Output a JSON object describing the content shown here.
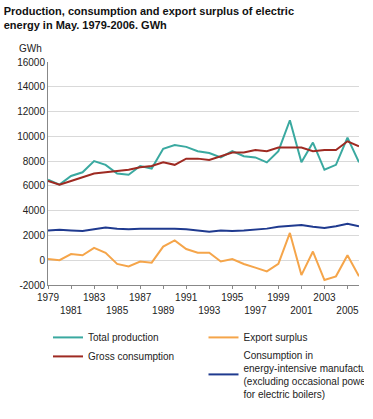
{
  "chart_data": {
    "type": "line",
    "title": "Production, consumption and export surplus of electric energy in May. 1979-2006. GWh",
    "ylabel": "GWh",
    "x": [
      1979,
      1980,
      1981,
      1982,
      1983,
      1984,
      1985,
      1986,
      1987,
      1988,
      1989,
      1990,
      1991,
      1992,
      1993,
      1994,
      1995,
      1996,
      1997,
      1998,
      1999,
      2000,
      2001,
      2002,
      2003,
      2004,
      2005,
      2006
    ],
    "series": [
      {
        "name": "Total production",
        "color": "#3aa9a0",
        "values": [
          6500,
          6100,
          6800,
          7100,
          8000,
          7700,
          7000,
          6900,
          7600,
          7400,
          9000,
          9300,
          9150,
          8800,
          8650,
          8300,
          8800,
          8400,
          8300,
          7900,
          8800,
          11300,
          7900,
          9500,
          7300,
          7700,
          9900,
          7900
        ]
      },
      {
        "name": "Export surplus",
        "color": "#f5a54a",
        "values": [
          100,
          0,
          500,
          400,
          1000,
          600,
          -300,
          -500,
          -100,
          -200,
          1100,
          1600,
          900,
          600,
          600,
          -100,
          100,
          -300,
          -600,
          -900,
          -300,
          2200,
          -1200,
          700,
          -1600,
          -1300,
          400,
          -1300
        ]
      },
      {
        "name": "Gross consumption",
        "color": "#9e2a22",
        "values": [
          6400,
          6100,
          6400,
          6700,
          7000,
          7100,
          7200,
          7300,
          7500,
          7600,
          7900,
          7700,
          8200,
          8200,
          8100,
          8400,
          8700,
          8700,
          8900,
          8800,
          9100,
          9100,
          9100,
          8800,
          8900,
          8900,
          9600,
          9200
        ]
      },
      {
        "name": "Consumption in energy-intensive manufacturing (excluding occasional power for electric boilers)",
        "color": "#1f3a8f",
        "values": [
          2400,
          2450,
          2400,
          2350,
          2500,
          2650,
          2550,
          2500,
          2550,
          2550,
          2600,
          2550,
          2500,
          2400,
          2300,
          2400,
          2350,
          2400,
          2450,
          2550,
          2700,
          2800,
          2850,
          2700,
          2600,
          2750,
          2950,
          2750
        ]
      }
    ],
    "xlim": [
      1979,
      2006
    ],
    "xticks": [
      1979,
      1981,
      1983,
      1985,
      1987,
      1989,
      1991,
      1993,
      1995,
      1997,
      1999,
      2001,
      2003,
      2005
    ],
    "ylim": [
      -2000,
      16000
    ],
    "yticks": [
      -2000,
      0,
      2000,
      4000,
      6000,
      8000,
      10000,
      12000,
      14000,
      16000
    ],
    "grid": true,
    "legend": "bottom"
  }
}
